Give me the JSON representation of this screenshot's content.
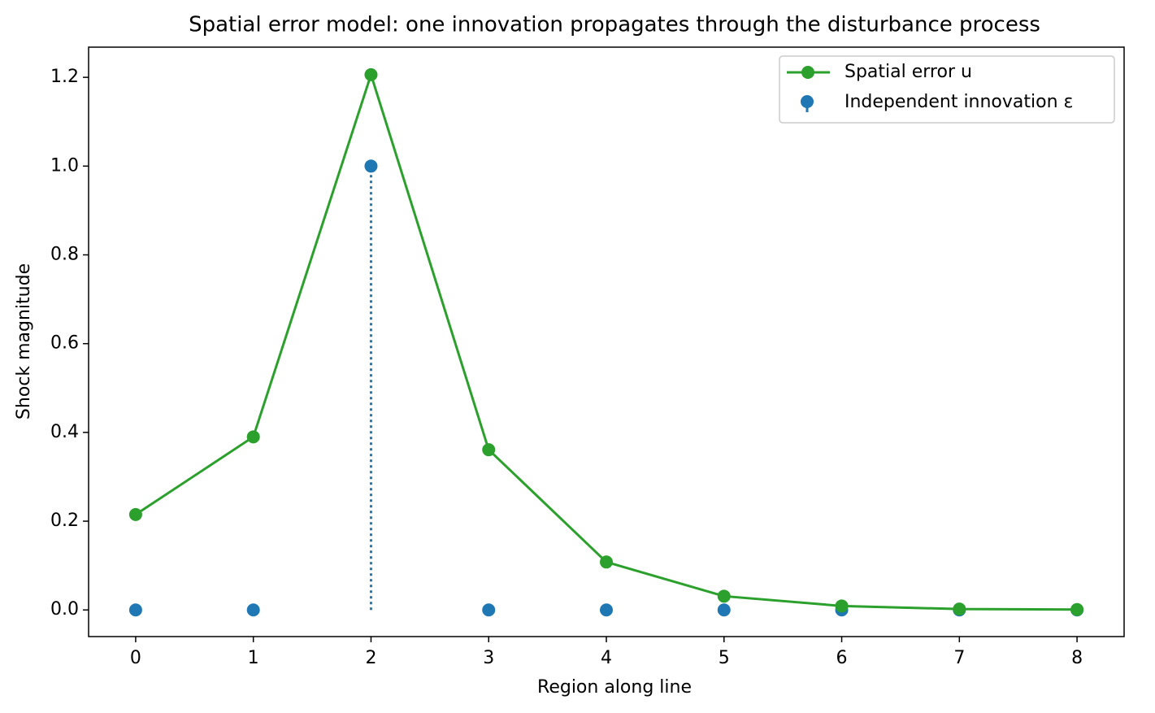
{
  "chart_data": {
    "type": "line",
    "title": "Spatial error model: one innovation propagates through the disturbance process",
    "x_label": "Region along line",
    "y_label": "Shock magnitude",
    "x": [
      0,
      1,
      2,
      3,
      4,
      5,
      6,
      7,
      8
    ],
    "series": [
      {
        "name": "Spatial error u",
        "color": "#2ca02c",
        "style": "line",
        "values": [
          0.215,
          0.39,
          1.206,
          0.361,
          0.108,
          0.031,
          0.009,
          0.002,
          0.001
        ]
      },
      {
        "name": "Independent innovation ε",
        "color": "#1f77b4",
        "style": "stem",
        "values": [
          0,
          0,
          1,
          0,
          0,
          0,
          0,
          0,
          0
        ]
      }
    ],
    "xlim": [
      -0.4,
      8.4
    ],
    "ylim": [
      -0.06,
      1.268
    ],
    "xticks": [
      0,
      1,
      2,
      3,
      4,
      5,
      6,
      7,
      8
    ],
    "yticks": [
      {
        "value": 0,
        "label": "0.0"
      },
      0.2,
      0.4,
      0.6,
      0.8,
      {
        "value": 1,
        "label": "1.0"
      },
      1.2
    ],
    "legend": "upper right",
    "grid": false
  }
}
